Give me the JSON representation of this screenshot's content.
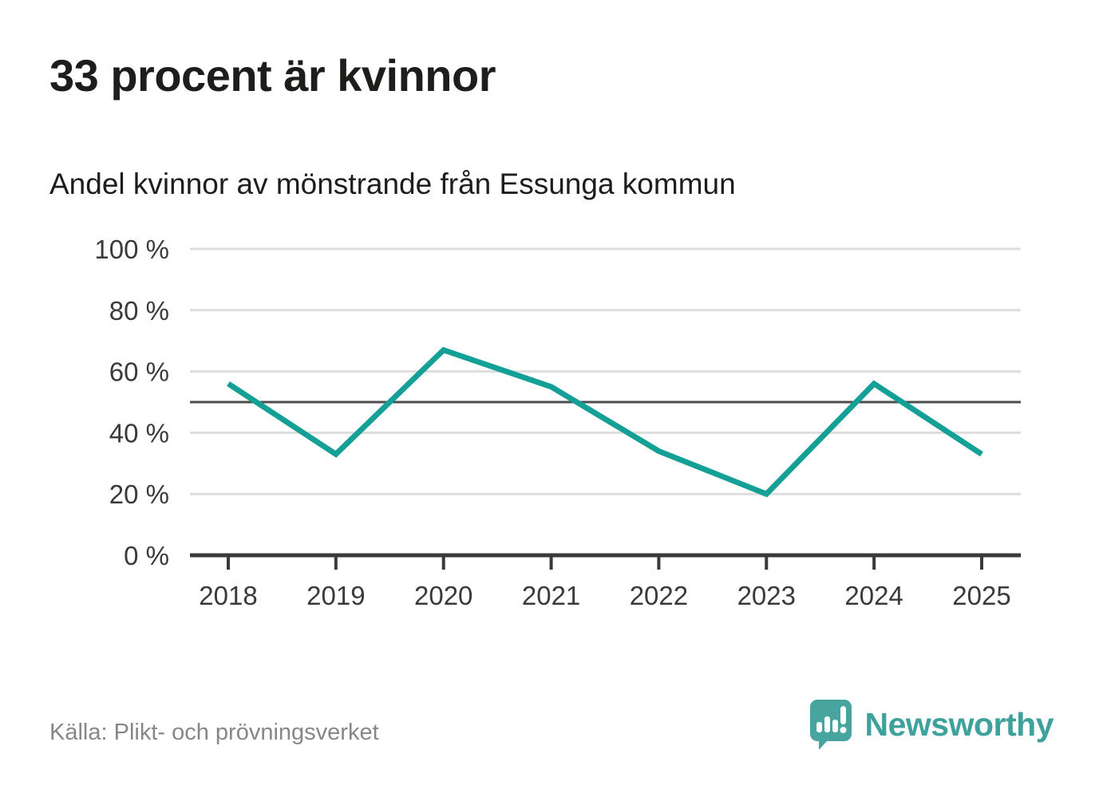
{
  "header": {
    "title": "33 procent är kvinnor",
    "subtitle": "Andel kvinnor av mönstrande från Essunga kommun"
  },
  "footer": {
    "source": "Källa: Plikt- och prövningsverket",
    "brand": "Newsworthy"
  },
  "colors": {
    "line": "#14a096",
    "grid": "#dddddd",
    "reference_line": "#4d4d4d",
    "axis": "#3a3a3a",
    "tick_text": "#3a3a3a",
    "title_text": "#1d1d1b",
    "source_text": "#878787",
    "brand_teal": "#3ea19b",
    "logo_bubble": "#47a49e"
  },
  "chart_data": {
    "type": "line",
    "title": "33 procent är kvinnor",
    "subtitle": "Andel kvinnor av mönstrande från Essunga kommun",
    "x": [
      2018,
      2019,
      2020,
      2021,
      2022,
      2023,
      2024,
      2025
    ],
    "values": [
      56,
      33,
      67,
      55,
      34,
      20,
      56,
      33
    ],
    "series_name": "Andel kvinnor",
    "xlabel": "",
    "ylabel": "",
    "ylim": [
      0,
      100
    ],
    "yticks": [
      0,
      20,
      40,
      60,
      80,
      100
    ],
    "ytick_suffix": " %",
    "reference_line": 50,
    "grid": "horizontal",
    "legend": "none"
  }
}
